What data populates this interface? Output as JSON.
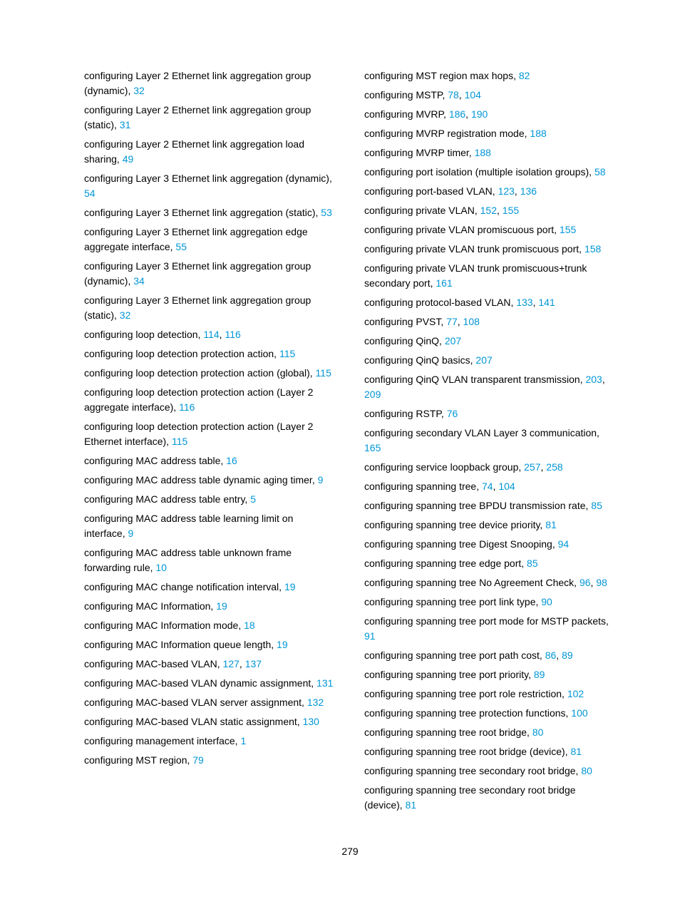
{
  "page_number": "279",
  "left_column": [
    {
      "text": "configuring Layer 2 Ethernet link aggregation group (dynamic), ",
      "refs": [
        "32"
      ]
    },
    {
      "text": "configuring Layer 2 Ethernet link aggregation group (static), ",
      "refs": [
        "31"
      ]
    },
    {
      "text": "configuring Layer 2 Ethernet link aggregation load sharing, ",
      "refs": [
        "49"
      ]
    },
    {
      "text": "configuring Layer 3 Ethernet link aggregation (dynamic), ",
      "refs": [
        "54"
      ]
    },
    {
      "text": "configuring Layer 3 Ethernet link aggregation (static), ",
      "refs": [
        "53"
      ]
    },
    {
      "text": "configuring Layer 3 Ethernet link aggregation edge aggregate interface, ",
      "refs": [
        "55"
      ]
    },
    {
      "text": "configuring Layer 3 Ethernet link aggregation group (dynamic), ",
      "refs": [
        "34"
      ]
    },
    {
      "text": "configuring Layer 3 Ethernet link aggregation group (static), ",
      "refs": [
        "32"
      ]
    },
    {
      "text": "configuring loop detection, ",
      "refs": [
        "114",
        "116"
      ]
    },
    {
      "text": "configuring loop detection protection action, ",
      "refs": [
        "115"
      ]
    },
    {
      "text": "configuring loop detection protection action (global), ",
      "refs": [
        "115"
      ]
    },
    {
      "text": "configuring loop detection protection action (Layer 2 aggregate interface), ",
      "refs": [
        "116"
      ]
    },
    {
      "text": "configuring loop detection protection action (Layer 2 Ethernet interface), ",
      "refs": [
        "115"
      ]
    },
    {
      "text": "configuring MAC address table, ",
      "refs": [
        "16"
      ]
    },
    {
      "text": "configuring MAC address table dynamic aging timer, ",
      "refs": [
        "9"
      ]
    },
    {
      "text": "configuring MAC address table entry, ",
      "refs": [
        "5"
      ]
    },
    {
      "text": "configuring MAC address table learning limit on interface, ",
      "refs": [
        "9"
      ]
    },
    {
      "text": "configuring MAC address table unknown frame forwarding rule, ",
      "refs": [
        "10"
      ]
    },
    {
      "text": "configuring MAC change notification interval, ",
      "refs": [
        "19"
      ]
    },
    {
      "text": "configuring MAC Information, ",
      "refs": [
        "19"
      ]
    },
    {
      "text": "configuring MAC Information mode, ",
      "refs": [
        "18"
      ]
    },
    {
      "text": "configuring MAC Information queue length, ",
      "refs": [
        "19"
      ]
    },
    {
      "text": "configuring MAC-based VLAN, ",
      "refs": [
        "127",
        "137"
      ]
    },
    {
      "text": "configuring MAC-based VLAN dynamic assignment, ",
      "refs": [
        "131"
      ]
    },
    {
      "text": "configuring MAC-based VLAN server assignment, ",
      "refs": [
        "132"
      ]
    },
    {
      "text": "configuring MAC-based VLAN static assignment, ",
      "refs": [
        "130"
      ]
    },
    {
      "text": "configuring management interface, ",
      "refs": [
        "1"
      ]
    },
    {
      "text": "configuring MST region, ",
      "refs": [
        "79"
      ]
    }
  ],
  "right_column": [
    {
      "text": "configuring MST region max hops, ",
      "refs": [
        "82"
      ]
    },
    {
      "text": "configuring MSTP, ",
      "refs": [
        "78",
        "104"
      ]
    },
    {
      "text": "configuring MVRP, ",
      "refs": [
        "186",
        "190"
      ]
    },
    {
      "text": "configuring MVRP registration mode, ",
      "refs": [
        "188"
      ]
    },
    {
      "text": "configuring MVRP timer, ",
      "refs": [
        "188"
      ]
    },
    {
      "text": "configuring port isolation (multiple isolation groups), ",
      "refs": [
        "58"
      ]
    },
    {
      "text": "configuring port-based VLAN, ",
      "refs": [
        "123",
        "136"
      ]
    },
    {
      "text": "configuring private VLAN, ",
      "refs": [
        "152",
        "155"
      ]
    },
    {
      "text": "configuring private VLAN promiscuous port, ",
      "refs": [
        "155"
      ]
    },
    {
      "text": "configuring private VLAN trunk promiscuous port, ",
      "refs": [
        "158"
      ]
    },
    {
      "text": "configuring private VLAN trunk promiscuous+trunk secondary port, ",
      "refs": [
        "161"
      ]
    },
    {
      "text": "configuring protocol-based VLAN, ",
      "refs": [
        "133",
        "141"
      ]
    },
    {
      "text": "configuring PVST, ",
      "refs": [
        "77",
        "108"
      ]
    },
    {
      "text": "configuring QinQ, ",
      "refs": [
        "207"
      ]
    },
    {
      "text": "configuring QinQ basics, ",
      "refs": [
        "207"
      ]
    },
    {
      "text": "configuring QinQ VLAN transparent transmission, ",
      "refs": [
        "203",
        "209"
      ]
    },
    {
      "text": "configuring RSTP, ",
      "refs": [
        "76"
      ]
    },
    {
      "text": "configuring secondary VLAN Layer 3 communication, ",
      "refs": [
        "165"
      ]
    },
    {
      "text": "configuring service loopback group, ",
      "refs": [
        "257",
        "258"
      ]
    },
    {
      "text": "configuring spanning tree, ",
      "refs": [
        "74",
        "104"
      ]
    },
    {
      "text": "configuring spanning tree BPDU transmission rate, ",
      "refs": [
        "85"
      ]
    },
    {
      "text": "configuring spanning tree device priority, ",
      "refs": [
        "81"
      ]
    },
    {
      "text": "configuring spanning tree Digest Snooping, ",
      "refs": [
        "94"
      ]
    },
    {
      "text": "configuring spanning tree edge port, ",
      "refs": [
        "85"
      ]
    },
    {
      "text": "configuring spanning tree No Agreement Check, ",
      "refs": [
        "96",
        "98"
      ]
    },
    {
      "text": "configuring spanning tree port link type, ",
      "refs": [
        "90"
      ]
    },
    {
      "text": "configuring spanning tree port mode for MSTP packets, ",
      "refs": [
        "91"
      ]
    },
    {
      "text": "configuring spanning tree port path cost, ",
      "refs": [
        "86",
        "89"
      ]
    },
    {
      "text": "configuring spanning tree port priority, ",
      "refs": [
        "89"
      ]
    },
    {
      "text": "configuring spanning tree port role restriction, ",
      "refs": [
        "102"
      ]
    },
    {
      "text": "configuring spanning tree protection functions, ",
      "refs": [
        "100"
      ]
    },
    {
      "text": "configuring spanning tree root bridge, ",
      "refs": [
        "80"
      ]
    },
    {
      "text": "configuring spanning tree root bridge (device), ",
      "refs": [
        "81"
      ]
    },
    {
      "text": "configuring spanning tree secondary root bridge, ",
      "refs": [
        "80"
      ]
    },
    {
      "text": "configuring spanning tree secondary root bridge (device), ",
      "refs": [
        "81"
      ]
    }
  ]
}
